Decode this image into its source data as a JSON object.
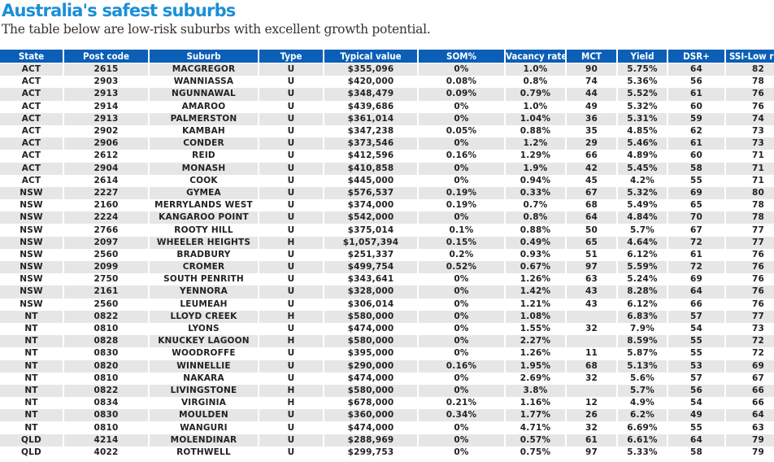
{
  "title": "Australia's safest suburbs",
  "subtitle": "The table below are low-risk suburbs with excellent growth potential.",
  "colors": {
    "title": "#1b8fd8",
    "header_bg": "#0b5fb6",
    "row_stripe": "#e6e6e6"
  },
  "table": {
    "columns": [
      "State",
      "Post code",
      "Suburb",
      "Type",
      "Typical value",
      "SOM%",
      "Vacancy rate",
      "MCT",
      "Yield",
      "DSR+",
      "SSI-Low risk"
    ],
    "rows": [
      [
        "ACT",
        "2615",
        "MACGREGOR",
        "U",
        "$355,096",
        "0%",
        "1.0%",
        "90",
        "5.75%",
        "64",
        "82"
      ],
      [
        "ACT",
        "2903",
        "WANNIASSA",
        "U",
        "$420,000",
        "0.08%",
        "0.8%",
        "74",
        "5.36%",
        "56",
        "78"
      ],
      [
        "ACT",
        "2913",
        "NGUNNAWAL",
        "U",
        "$348,479",
        "0.09%",
        "0.79%",
        "44",
        "5.52%",
        "61",
        "76"
      ],
      [
        "ACT",
        "2914",
        "AMAROO",
        "U",
        "$439,686",
        "0%",
        "1.0%",
        "49",
        "5.32%",
        "60",
        "76"
      ],
      [
        "ACT",
        "2913",
        "PALMERSTON",
        "U",
        "$361,014",
        "0%",
        "1.04%",
        "36",
        "5.31%",
        "59",
        "74"
      ],
      [
        "ACT",
        "2902",
        "KAMBAH",
        "U",
        "$347,238",
        "0.05%",
        "0.88%",
        "35",
        "4.85%",
        "62",
        "73"
      ],
      [
        "ACT",
        "2906",
        "CONDER",
        "U",
        "$373,546",
        "0%",
        "1.2%",
        "29",
        "5.46%",
        "61",
        "73"
      ],
      [
        "ACT",
        "2612",
        "REID",
        "U",
        "$412,596",
        "0.16%",
        "1.29%",
        "66",
        "4.89%",
        "60",
        "71"
      ],
      [
        "ACT",
        "2904",
        "MONASH",
        "U",
        "$410,858",
        "0%",
        "1.9%",
        "42",
        "5.45%",
        "58",
        "71"
      ],
      [
        "ACT",
        "2614",
        "COOK",
        "U",
        "$445,000",
        "0%",
        "0.94%",
        "45",
        "4.2%",
        "55",
        "71"
      ],
      [
        "NSW",
        "2227",
        "GYMEA",
        "U",
        "$576,537",
        "0.19%",
        "0.33%",
        "67",
        "5.32%",
        "69",
        "80"
      ],
      [
        "NSW",
        "2160",
        "MERRYLANDS WEST",
        "U",
        "$374,000",
        "0.19%",
        "0.7%",
        "68",
        "5.49%",
        "65",
        "78"
      ],
      [
        "NSW",
        "2224",
        "KANGAROO POINT",
        "U",
        "$542,000",
        "0%",
        "0.8%",
        "64",
        "4.84%",
        "70",
        "78"
      ],
      [
        "NSW",
        "2766",
        "ROOTY HILL",
        "U",
        "$375,014",
        "0.1%",
        "0.88%",
        "50",
        "5.7%",
        "67",
        "77"
      ],
      [
        "NSW",
        "2097",
        "WHEELER HEIGHTS",
        "H",
        "$1,057,394",
        "0.15%",
        "0.49%",
        "65",
        "4.64%",
        "72",
        "77"
      ],
      [
        "NSW",
        "2560",
        "BRADBURY",
        "U",
        "$251,337",
        "0.2%",
        "0.93%",
        "51",
        "6.12%",
        "61",
        "76"
      ],
      [
        "NSW",
        "2099",
        "CROMER",
        "U",
        "$499,754",
        "0.52%",
        "0.67%",
        "97",
        "5.59%",
        "72",
        "76"
      ],
      [
        "NSW",
        "2750",
        "SOUTH PENRITH",
        "U",
        "$343,641",
        "0%",
        "1.26%",
        "63",
        "5.24%",
        "69",
        "76"
      ],
      [
        "NSW",
        "2161",
        "YENNORA",
        "U",
        "$328,000",
        "0%",
        "1.42%",
        "43",
        "8.28%",
        "64",
        "76"
      ],
      [
        "NSW",
        "2560",
        "LEUMEAH",
        "U",
        "$306,014",
        "0%",
        "1.21%",
        "43",
        "6.12%",
        "66",
        "76"
      ],
      [
        "NT",
        "0822",
        "LLOYD CREEK",
        "H",
        "$580,000",
        "0%",
        "1.08%",
        "",
        "6.83%",
        "57",
        "77"
      ],
      [
        "NT",
        "0810",
        "LYONS",
        "U",
        "$474,000",
        "0%",
        "1.55%",
        "32",
        "7.9%",
        "54",
        "73"
      ],
      [
        "NT",
        "0828",
        "KNUCKEY LAGOON",
        "H",
        "$580,000",
        "0%",
        "2.27%",
        "",
        "8.59%",
        "55",
        "72"
      ],
      [
        "NT",
        "0830",
        "WOODROFFE",
        "U",
        "$395,000",
        "0%",
        "1.26%",
        "11",
        "5.87%",
        "55",
        "72"
      ],
      [
        "NT",
        "0820",
        "WINNELLIE",
        "U",
        "$290,000",
        "0.16%",
        "1.95%",
        "68",
        "5.13%",
        "53",
        "69"
      ],
      [
        "NT",
        "0810",
        "NAKARA",
        "U",
        "$474,000",
        "0%",
        "2.69%",
        "32",
        "5.6%",
        "57",
        "67"
      ],
      [
        "NT",
        "0822",
        "LIVINGSTONE",
        "H",
        "$580,000",
        "0%",
        "3.8%",
        "",
        "5.7%",
        "56",
        "66"
      ],
      [
        "NT",
        "0834",
        "VIRGINIA",
        "H",
        "$678,000",
        "0.21%",
        "1.16%",
        "12",
        "4.9%",
        "54",
        "66"
      ],
      [
        "NT",
        "0830",
        "MOULDEN",
        "U",
        "$360,000",
        "0.34%",
        "1.77%",
        "26",
        "6.2%",
        "49",
        "64"
      ],
      [
        "NT",
        "0810",
        "WANGURI",
        "U",
        "$474,000",
        "0%",
        "4.71%",
        "32",
        "6.69%",
        "55",
        "63"
      ],
      [
        "QLD",
        "4214",
        "MOLENDINAR",
        "U",
        "$288,969",
        "0%",
        "0.57%",
        "61",
        "6.61%",
        "64",
        "79"
      ],
      [
        "QLD",
        "4022",
        "ROTHWELL",
        "U",
        "$299,753",
        "0%",
        "0.75%",
        "97",
        "5.33%",
        "58",
        "79"
      ]
    ]
  }
}
